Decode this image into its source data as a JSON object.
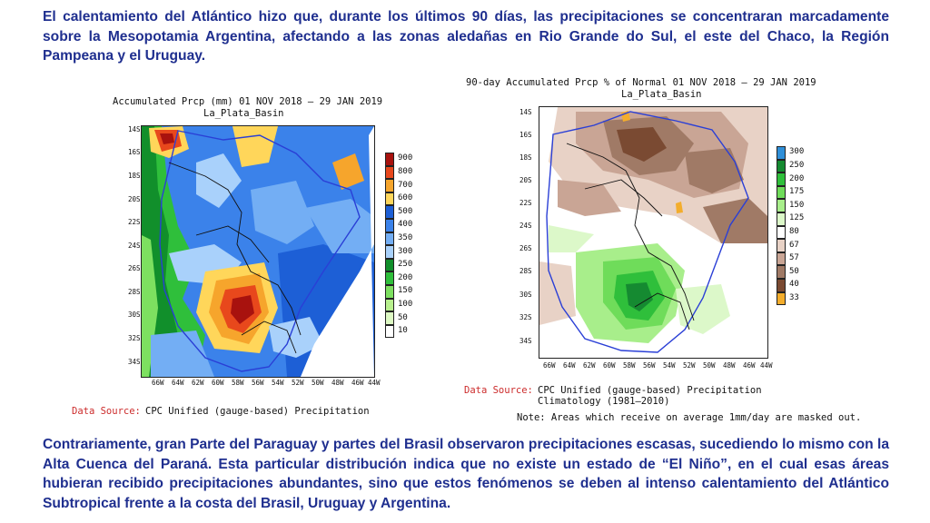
{
  "paragraphs": {
    "top": "El calentamiento del Atlántico hizo que, durante los últimos 90 días, las precipitaciones se concentraran marcadamente sobre la Mesopotamia Argentina, afectando a las zonas aledañas en  Rio Grande do Sul, el este del Chaco,  la Región Pampeana y el Uruguay.",
    "bottom": "Contrariamente, gran Parte del Paraguay  y partes del Brasil observaron precipitaciones escasas, sucediendo lo mismo con la Alta Cuenca del Paraná. Esta particular distribución indica que no existe un estado de “El Niño”, en el cual esas áreas hubieran recibido precipitaciones abundantes, sino que estos fenómenos se deben al intenso calentamiento del Atlántico Subtropical frente a la costa del Brasil, Uruguay y Argentina."
  },
  "map_left": {
    "title": "Accumulated Prcp (mm) 01 NOV 2018 – 29 JAN 2019",
    "subtitle": "La_Plata_Basin",
    "lat_labels": [
      "14S",
      "16S",
      "18S",
      "20S",
      "22S",
      "24S",
      "26S",
      "28S",
      "30S",
      "32S",
      "34S"
    ],
    "lon_labels": [
      "66W",
      "64W",
      "62W",
      "60W",
      "58W",
      "56W",
      "54W",
      "52W",
      "50W",
      "48W",
      "46W",
      "44W"
    ],
    "legend": [
      {
        "label": "900",
        "color": "#a8120e"
      },
      {
        "label": "800",
        "color": "#e8481c"
      },
      {
        "label": "700",
        "color": "#f6a52c"
      },
      {
        "label": "600",
        "color": "#ffd65a"
      },
      {
        "label": "500",
        "color": "#1d5fd6"
      },
      {
        "label": "400",
        "color": "#3b82ea"
      },
      {
        "label": "350",
        "color": "#73aef4"
      },
      {
        "label": "300",
        "color": "#a9d1fb"
      },
      {
        "label": "250",
        "color": "#118f2b"
      },
      {
        "label": "200",
        "color": "#2fbf3b"
      },
      {
        "label": "150",
        "color": "#7de060"
      },
      {
        "label": "100",
        "color": "#b8f08e"
      },
      {
        "label": "50",
        "color": "#ddf9c3"
      },
      {
        "label": "10",
        "color": "#ffffff"
      }
    ],
    "source_label": "Data Source:",
    "source_text": "CPC Unified (gauge-based) Precipitation"
  },
  "map_right": {
    "title": "90-day Accumulated Prcp % of Normal 01 NOV 2018 – 29 JAN 2019",
    "subtitle": "La_Plata_Basin",
    "lat_labels": [
      "14S",
      "16S",
      "18S",
      "20S",
      "22S",
      "24S",
      "26S",
      "28S",
      "30S",
      "32S",
      "34S"
    ],
    "lon_labels": [
      "66W",
      "64W",
      "62W",
      "60W",
      "58W",
      "56W",
      "54W",
      "52W",
      "50W",
      "48W",
      "46W",
      "44W"
    ],
    "legend": [
      {
        "label": "300",
        "color": "#2f8fd8"
      },
      {
        "label": "250",
        "color": "#158a31"
      },
      {
        "label": "200",
        "color": "#2fbf3b"
      },
      {
        "label": "175",
        "color": "#6fdc5a"
      },
      {
        "label": "150",
        "color": "#a8ee8b"
      },
      {
        "label": "125",
        "color": "#dcf8c9"
      },
      {
        "label": "80",
        "color": "#ffffff"
      },
      {
        "label": "67",
        "color": "#e8d2c6"
      },
      {
        "label": "57",
        "color": "#c9a595"
      },
      {
        "label": "50",
        "color": "#a07a66"
      },
      {
        "label": "40",
        "color": "#7a4a32"
      },
      {
        "label": "33",
        "color": "#f3ad2c"
      }
    ],
    "source_label": "Data Source:",
    "source_text": "CPC Unified (gauge-based) Precipitation",
    "climatology": "Climatology (1981–2010)",
    "note": "Note: Areas which receive on average 1mm/day are masked out."
  },
  "colors": {
    "text_blue": "#1f2f8f",
    "source_red": "#cc2b2b",
    "basin_line": "#2a3fd6"
  }
}
